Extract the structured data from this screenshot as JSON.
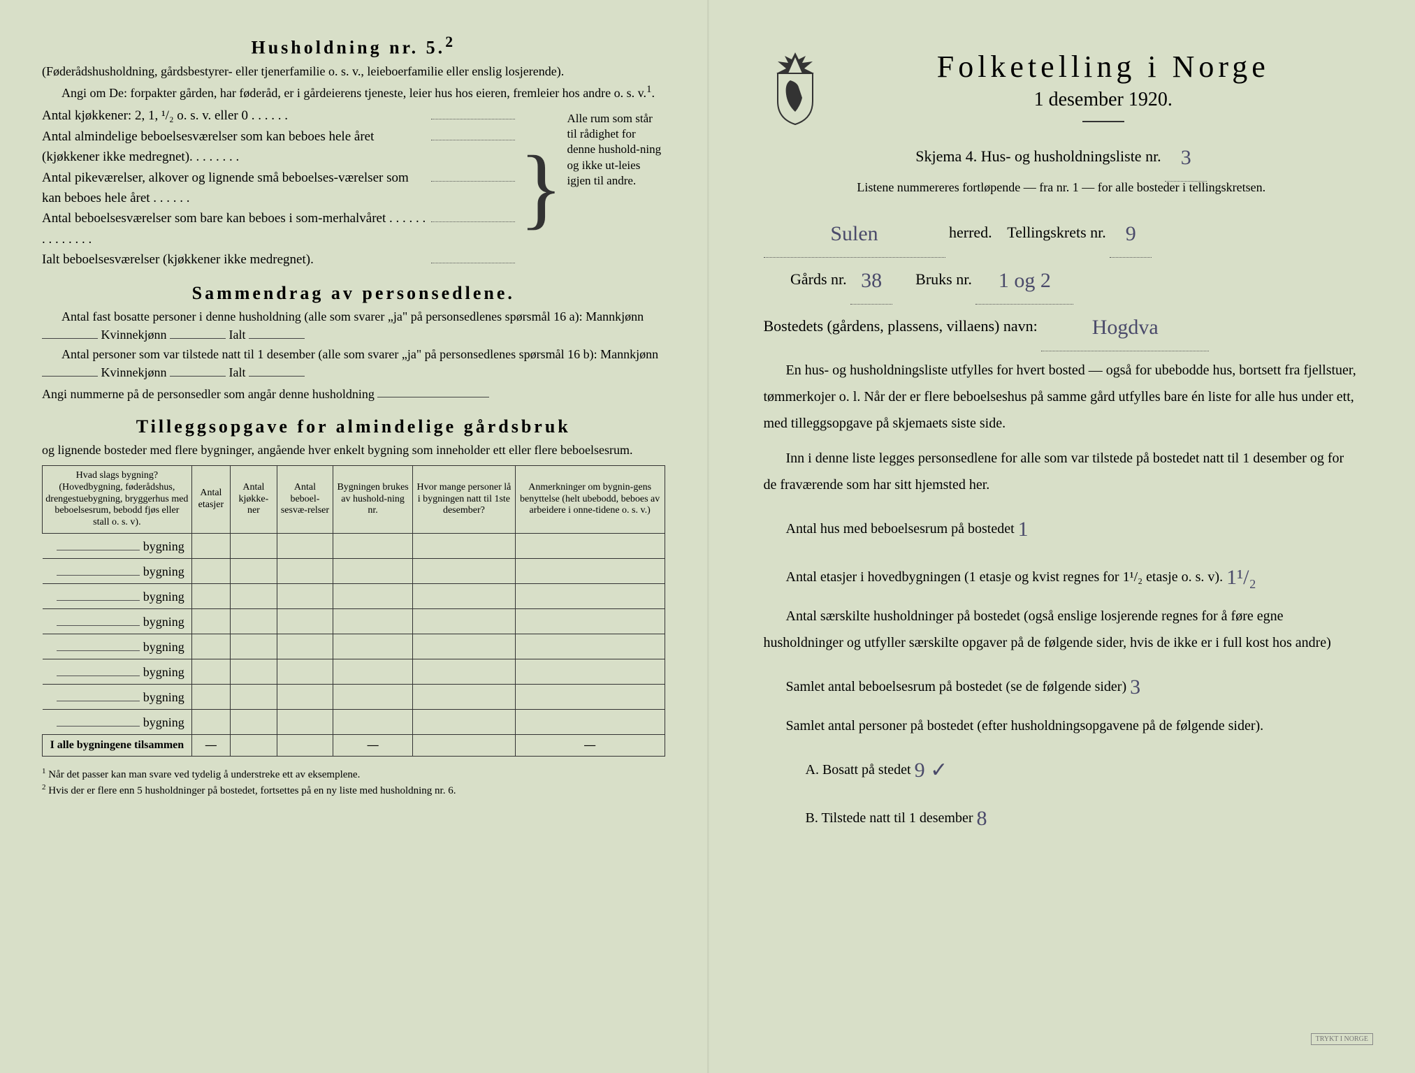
{
  "left": {
    "heading": "Husholdning nr. 5.",
    "heading_sup": "2",
    "intro1": "(Føderådshusholdning, gårdsbestyrer- eller tjenerfamilie o. s. v., leieboerfamilie eller enslig losjerende).",
    "intro2": "Angi om De:  forpakter gården, har føderåd, er i gårdeierens tjeneste, leier hus hos eieren, fremleier hos andre o. s. v.",
    "intro2_sup": "1",
    "kitchens_label": "Antal kjøkkener: 2, 1, ¹/₂ o. s. v. eller 0 . . . . . .",
    "rooms1": "Antal almindelige beboelsesværelser som kan beboes hele året (kjøkkener ikke medregnet). . . . . . . .",
    "rooms2": "Antal pikeværelser, alkover og lignende små beboelses-værelser som kan beboes hele året . . . . . .",
    "rooms3": "Antal beboelsesværelser som bare kan beboes i som-merhalvåret . . . . . . . . . . . . . .",
    "rooms_total": "Ialt beboelsesværelser  (kjøkkener ikke medregnet).",
    "brace_text": "Alle rum som står til rådighet for denne hushold-ning og ikke ut-leies igjen til andre.",
    "summary_heading": "Sammendrag av personsedlene.",
    "summary1a": "Antal fast bosatte personer i denne husholdning (alle som svarer „ja\" på personsedlenes spørsmål 16 a): Mannkjønn",
    "summary1b": "Kvinnekjønn",
    "summary1c": "Ialt",
    "summary2a": "Antal personer som var tilstede natt til 1 desember (alle som svarer „ja\" på personsedlenes spørsmål 16 b): Mannkjønn",
    "summary3": "Angi nummerne på de personsedler som angår denne husholdning",
    "tillegg_heading": "Tilleggsopgave for almindelige gårdsbruk",
    "tillegg_sub": "og lignende bosteder med flere bygninger, angående hver enkelt bygning som inneholder ett eller flere beboelsesrum.",
    "table": {
      "headers": [
        "Hvad slags bygning?\n(Hovedbygning, føderådshus, drengestuebygning, bryggerhus med beboelsesrum, bebodd fjøs eller stall o. s. v).",
        "Antal etasjer",
        "Antal kjøkke-ner",
        "Antal beboel-sesvæ-relser",
        "Bygningen brukes av hushold-ning nr.",
        "Hvor mange personer lå i bygningen natt til 1ste desember?",
        "Anmerkninger om bygnin-gens benyttelse (helt ubebodd, beboes av arbeidere i onne-tidene o. s. v.)"
      ],
      "row_label": "bygning",
      "row_count": 8,
      "sum_label": "I alle bygningene tilsammen",
      "dashes": [
        "—",
        "",
        "",
        "",
        "—",
        "—"
      ]
    },
    "footnote1": "Når det passer kan man svare ved tydelig å understreke ett av eksemplene.",
    "footnote2": "Hvis der er flere enn 5 husholdninger på bostedet, fortsettes på en ny liste med husholdning nr. 6."
  },
  "right": {
    "title": "Folketelling i Norge",
    "subtitle": "1 desember 1920.",
    "skjema_line": "Skjema 4.  Hus- og husholdningsliste nr.",
    "skjema_nr": "3",
    "listene": "Listene nummereres fortløpende — fra nr. 1 — for alle bosteder i tellingskretsen.",
    "herred_value": "Sulen",
    "herred_label": "herred.",
    "krets_label": "Tellingskrets nr.",
    "krets_value": "9",
    "gards_label": "Gårds nr.",
    "gards_value": "38",
    "bruks_label": "Bruks nr.",
    "bruks_value": "1 og 2",
    "bosted_label": "Bostedets (gårdens, plassens, villaens) navn:",
    "bosted_value": "Hogdva",
    "para1": "En hus- og husholdningsliste utfylles for hvert bosted — også for ubebodde hus, bortsett fra fjellstuer, tømmerkojer o. l.  Når der er flere beboelseshus på samme gård utfylles bare én liste for alle hus under ett, med tilleggsopgave på skjemaets siste side.",
    "para2": "Inn i denne liste legges personsedlene for alle som var tilstede på bostedet natt til 1 desember og for de fraværende som har sitt hjemsted her.",
    "q1_label": "Antal hus med beboelsesrum på bostedet",
    "q1_value": "1",
    "q2_label": "Antal etasjer i hovedbygningen (1 etasje og kvist regnes for 1¹/₂ etasje o. s. v).",
    "q2_value": "1¹/₂",
    "q3_label": "Antal særskilte husholdninger på bostedet (også enslige losjerende regnes for å føre egne husholdninger og utfyller særskilte opgaver på de følgende sider, hvis de ikke er i full kost hos andre)",
    "q4_label": "Samlet antal beboelsesrum på bostedet (se de følgende sider)",
    "q4_value": "3",
    "q5_label": "Samlet antal personer på bostedet (efter husholdningsopgavene på de følgende sider).",
    "qA_label": "A.  Bosatt på stedet",
    "qA_value": "9 ✓",
    "qB_label": "B.  Tilstede natt til 1 desember",
    "qB_value": "8",
    "stamp": "TRYKT I NORGE"
  },
  "colors": {
    "paper": "#d8dfc8",
    "ink": "#2a2a2a",
    "handwriting": "#4a4a6a"
  }
}
